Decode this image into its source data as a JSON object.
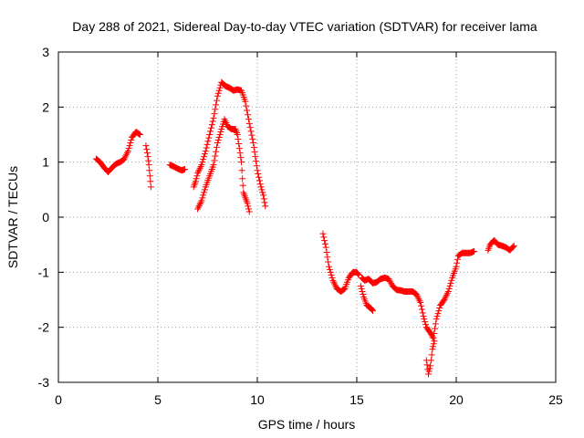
{
  "chart_data": {
    "type": "scatter",
    "title": "Day 288 of 2021, Sidereal Day-to-day VTEC variation (SDTVAR) for receiver lama",
    "xlabel": "GPS time / hours",
    "ylabel": "SDTVAR / TECUs",
    "xlim": [
      0,
      25
    ],
    "ylim": [
      -3,
      3
    ],
    "xticks": [
      "0",
      "5",
      "10",
      "15",
      "20",
      "25"
    ],
    "yticks": [
      "-3",
      "-2",
      "-1",
      "0",
      "1",
      "2",
      "3"
    ],
    "grid": true,
    "marker": "+",
    "color": "#ff0000",
    "segments": [
      [
        [
          1.9,
          1.06
        ],
        [
          2.1,
          1.0
        ],
        [
          2.3,
          0.9
        ],
        [
          2.5,
          0.82
        ],
        [
          2.7,
          0.9
        ],
        [
          2.9,
          0.97
        ],
        [
          3.1,
          1.0
        ],
        [
          3.3,
          1.05
        ],
        [
          3.5,
          1.2
        ],
        [
          3.7,
          1.45
        ],
        [
          3.9,
          1.55
        ],
        [
          4.1,
          1.5
        ]
      ],
      [
        [
          4.4,
          1.3
        ],
        [
          4.5,
          1.1
        ],
        [
          4.55,
          0.95
        ],
        [
          4.6,
          0.75
        ],
        [
          4.65,
          0.55
        ]
      ],
      [
        [
          5.6,
          0.95
        ],
        [
          5.8,
          0.92
        ],
        [
          6.0,
          0.88
        ],
        [
          6.2,
          0.85
        ],
        [
          6.35,
          0.87
        ]
      ],
      [
        [
          6.8,
          0.55
        ],
        [
          6.9,
          0.65
        ],
        [
          7.0,
          0.8
        ],
        [
          7.2,
          0.95
        ],
        [
          7.4,
          1.2
        ],
        [
          7.6,
          1.5
        ],
        [
          7.8,
          1.8
        ],
        [
          8.0,
          2.2
        ],
        [
          8.2,
          2.45
        ],
        [
          8.4,
          2.38
        ],
        [
          8.6,
          2.35
        ],
        [
          8.8,
          2.3
        ],
        [
          9.0,
          2.32
        ],
        [
          9.2,
          2.3
        ],
        [
          9.4,
          2.1
        ],
        [
          9.6,
          1.7
        ],
        [
          9.8,
          1.35
        ],
        [
          9.9,
          1.1
        ],
        [
          10.0,
          0.85
        ],
        [
          10.15,
          0.6
        ],
        [
          10.3,
          0.4
        ],
        [
          10.4,
          0.2
        ]
      ],
      [
        [
          7.0,
          0.15
        ],
        [
          7.2,
          0.3
        ],
        [
          7.4,
          0.55
        ],
        [
          7.6,
          0.75
        ],
        [
          7.8,
          0.95
        ],
        [
          8.0,
          1.35
        ],
        [
          8.2,
          1.6
        ],
        [
          8.35,
          1.78
        ],
        [
          8.5,
          1.65
        ],
        [
          8.7,
          1.6
        ],
        [
          8.9,
          1.6
        ],
        [
          9.0,
          1.5
        ],
        [
          9.1,
          1.25
        ],
        [
          9.2,
          1.0
        ],
        [
          9.25,
          0.7
        ],
        [
          9.3,
          0.45
        ],
        [
          9.4,
          0.35
        ],
        [
          9.5,
          0.25
        ],
        [
          9.6,
          0.1
        ]
      ],
      [
        [
          13.3,
          -0.3
        ],
        [
          13.45,
          -0.55
        ],
        [
          13.6,
          -0.9
        ],
        [
          13.8,
          -1.15
        ],
        [
          14.0,
          -1.3
        ],
        [
          14.2,
          -1.35
        ],
        [
          14.4,
          -1.3
        ],
        [
          14.6,
          -1.1
        ],
        [
          14.8,
          -1.0
        ],
        [
          15.0,
          -1.0
        ],
        [
          15.1,
          -1.05
        ]
      ],
      [
        [
          15.25,
          -1.1
        ],
        [
          15.4,
          -1.15
        ],
        [
          15.6,
          -1.12
        ],
        [
          15.8,
          -1.2
        ],
        [
          16.0,
          -1.18
        ],
        [
          16.2,
          -1.12
        ],
        [
          16.4,
          -1.1
        ],
        [
          16.6,
          -1.12
        ],
        [
          16.8,
          -1.25
        ],
        [
          17.0,
          -1.32
        ],
        [
          17.2,
          -1.33
        ],
        [
          17.4,
          -1.35
        ],
        [
          17.6,
          -1.35
        ],
        [
          17.8,
          -1.35
        ],
        [
          18.0,
          -1.4
        ],
        [
          18.2,
          -1.55
        ],
        [
          18.35,
          -1.8
        ],
        [
          18.5,
          -2.0
        ],
        [
          18.7,
          -2.1
        ],
        [
          18.85,
          -2.2
        ],
        [
          19.0,
          -1.85
        ],
        [
          19.2,
          -1.6
        ],
        [
          19.4,
          -1.5
        ],
        [
          19.6,
          -1.35
        ],
        [
          19.8,
          -1.1
        ],
        [
          20.0,
          -0.9
        ],
        [
          20.1,
          -0.7
        ],
        [
          20.3,
          -0.65
        ],
        [
          20.5,
          -0.65
        ],
        [
          20.7,
          -0.65
        ],
        [
          20.9,
          -0.62
        ]
      ],
      [
        [
          15.2,
          -1.25
        ],
        [
          15.35,
          -1.45
        ],
        [
          15.5,
          -1.6
        ],
        [
          15.7,
          -1.65
        ],
        [
          15.8,
          -1.7
        ]
      ],
      [
        [
          18.5,
          -2.6
        ],
        [
          18.6,
          -2.85
        ],
        [
          18.7,
          -2.7
        ],
        [
          18.8,
          -2.4
        ],
        [
          18.9,
          -2.25
        ]
      ],
      [
        [
          21.6,
          -0.6
        ],
        [
          21.7,
          -0.5
        ],
        [
          21.9,
          -0.42
        ],
        [
          22.1,
          -0.5
        ],
        [
          22.3,
          -0.52
        ],
        [
          22.5,
          -0.55
        ],
        [
          22.7,
          -0.6
        ],
        [
          22.9,
          -0.52
        ]
      ]
    ]
  }
}
